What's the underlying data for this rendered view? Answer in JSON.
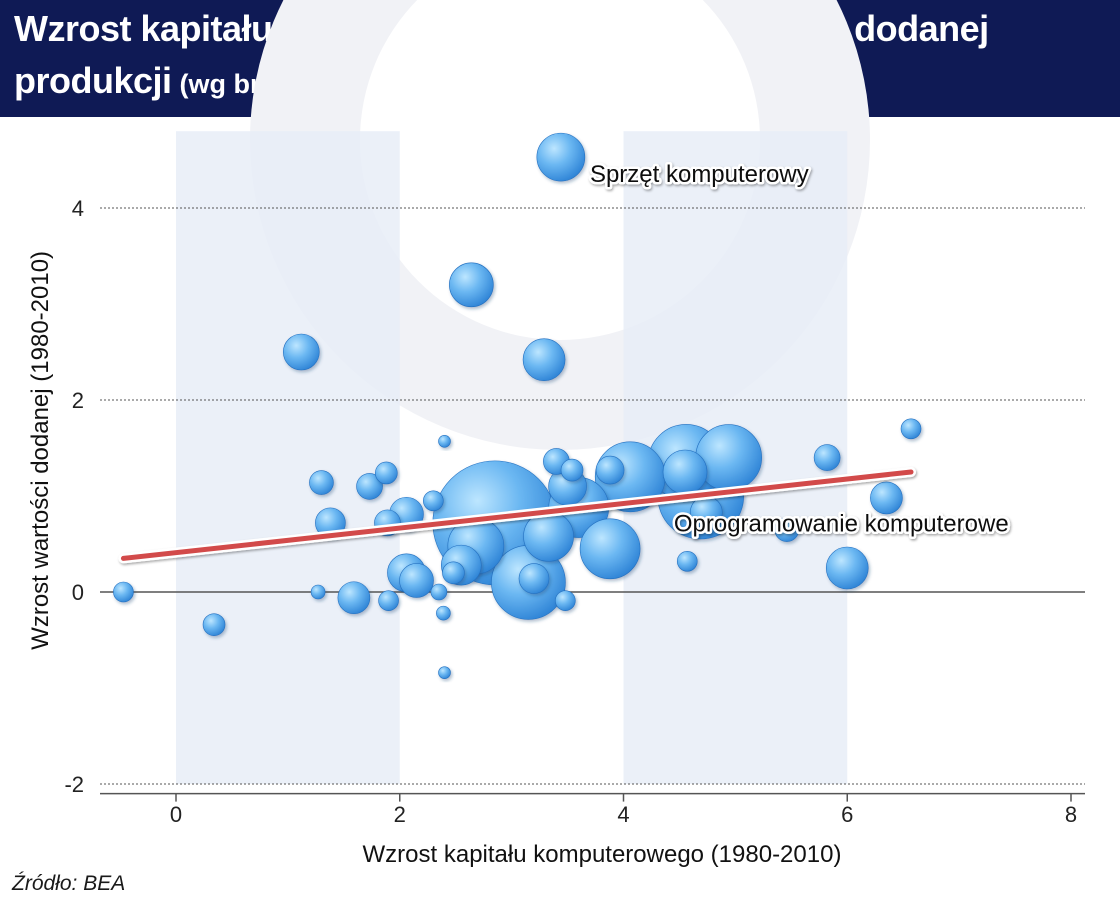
{
  "title": {
    "main_line1": "Wzrost kapitału komputerowego i wzrost wartości dodanej",
    "main_line2": "produkcji",
    "subtitle": "(wg branży, w proc.)"
  },
  "source": "Źródło: BEA",
  "colors": {
    "header_bg": "#0f1a55",
    "band": "#e8edf7",
    "bubble_fill": "#3d95e0",
    "bubble_highlight": "#bde6ff",
    "trend": "#d24a4a"
  },
  "chart_data": {
    "type": "scatter",
    "xlabel": "Wzrost kapitału komputerowego (1980-2010)",
    "ylabel": "Wzrost wartości dodanej (1980-2010)",
    "xlim": [
      -0.7,
      8.1
    ],
    "ylim": [
      -2.1,
      4.8
    ],
    "xticks": [
      0,
      2,
      4,
      6,
      8
    ],
    "yticks": [
      -2,
      0,
      2,
      4
    ],
    "shaded_x_bands": [
      [
        0,
        2
      ],
      [
        4,
        6
      ]
    ],
    "dashed_gridlines_y": [
      -2,
      2,
      4
    ],
    "zero_line_y": 0,
    "bubble_size_unit": "relative",
    "points": [
      {
        "x": -0.47,
        "y": 0.0,
        "size": 10
      },
      {
        "x": 0.34,
        "y": -0.34,
        "size": 11
      },
      {
        "x": 1.12,
        "y": 2.5,
        "size": 18
      },
      {
        "x": 1.3,
        "y": 1.14,
        "size": 12
      },
      {
        "x": 1.27,
        "y": 0.0,
        "size": 7
      },
      {
        "x": 1.38,
        "y": 0.72,
        "size": 15
      },
      {
        "x": 1.59,
        "y": -0.06,
        "size": 16
      },
      {
        "x": 1.73,
        "y": 1.1,
        "size": 13
      },
      {
        "x": 1.89,
        "y": 0.72,
        "size": 13
      },
      {
        "x": 1.9,
        "y": -0.09,
        "size": 10
      },
      {
        "x": 1.88,
        "y": 1.24,
        "size": 11
      },
      {
        "x": 2.06,
        "y": 0.81,
        "size": 17
      },
      {
        "x": 2.06,
        "y": 0.2,
        "size": 19
      },
      {
        "x": 2.15,
        "y": 0.12,
        "size": 17
      },
      {
        "x": 2.3,
        "y": 0.95,
        "size": 10
      },
      {
        "x": 2.35,
        "y": 0.0,
        "size": 8
      },
      {
        "x": 2.39,
        "y": -0.22,
        "size": 7
      },
      {
        "x": 2.4,
        "y": -0.84,
        "size": 6
      },
      {
        "x": 2.4,
        "y": 1.57,
        "size": 6
      },
      {
        "x": 2.48,
        "y": 0.2,
        "size": 11
      },
      {
        "x": 2.55,
        "y": 0.28,
        "size": 20
      },
      {
        "x": 2.64,
        "y": 3.2,
        "size": 22
      },
      {
        "x": 2.68,
        "y": 0.48,
        "size": 28
      },
      {
        "x": 2.85,
        "y": 0.72,
        "size": 62
      },
      {
        "x": 3.15,
        "y": 0.1,
        "size": 37
      },
      {
        "x": 3.2,
        "y": 0.14,
        "size": 15
      },
      {
        "x": 3.29,
        "y": 2.42,
        "size": 21
      },
      {
        "x": 3.33,
        "y": 0.58,
        "size": 25
      },
      {
        "x": 3.4,
        "y": 1.36,
        "size": 13
      },
      {
        "x": 3.44,
        "y": 4.53,
        "size": 24
      },
      {
        "x": 3.5,
        "y": 1.1,
        "size": 19
      },
      {
        "x": 3.54,
        "y": 1.27,
        "size": 11
      },
      {
        "x": 3.6,
        "y": 0.88,
        "size": 30
      },
      {
        "x": 3.48,
        "y": -0.09,
        "size": 10
      },
      {
        "x": 3.88,
        "y": 0.45,
        "size": 30
      },
      {
        "x": 3.88,
        "y": 1.27,
        "size": 14
      },
      {
        "x": 4.06,
        "y": 1.2,
        "size": 35
      },
      {
        "x": 4.56,
        "y": 1.35,
        "size": 38
      },
      {
        "x": 4.55,
        "y": 1.25,
        "size": 22
      },
      {
        "x": 4.69,
        "y": 1.0,
        "size": 43
      },
      {
        "x": 4.74,
        "y": 0.83,
        "size": 16
      },
      {
        "x": 4.94,
        "y": 1.4,
        "size": 33
      },
      {
        "x": 4.57,
        "y": 0.32,
        "size": 10
      },
      {
        "x": 5.46,
        "y": 0.65,
        "size": 12
      },
      {
        "x": 5.82,
        "y": 1.4,
        "size": 13
      },
      {
        "x": 6.0,
        "y": 0.25,
        "size": 21
      },
      {
        "x": 6.35,
        "y": 0.98,
        "size": 16
      },
      {
        "x": 6.57,
        "y": 1.7,
        "size": 10
      }
    ],
    "trendline": {
      "x0": -0.47,
      "y0": 0.35,
      "x1": 6.57,
      "y1": 1.25
    },
    "annotations": [
      {
        "text": "Sprzęt komputerowy",
        "x": 3.7,
        "y": 4.27
      },
      {
        "text": "Oprogramowanie komputerowe",
        "x": 4.45,
        "y": 0.63
      }
    ]
  }
}
